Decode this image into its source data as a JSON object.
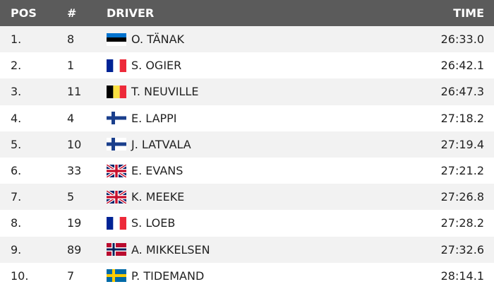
{
  "table": {
    "header": [
      "POS",
      "#",
      "DRIVER",
      "TIME"
    ],
    "rows": [
      [
        "1.",
        "8",
        "O. TÄNAK",
        "26:33.0"
      ],
      [
        "2.",
        "1",
        "S. OGIER",
        "26:42.1"
      ],
      [
        "3.",
        "11",
        "T. NEUVILLE",
        "26:47.3"
      ],
      [
        "4.",
        "4",
        "E. LAPPI",
        "27:18.2"
      ],
      [
        "5.",
        "10",
        "J. LATVALA",
        "27:19.4"
      ],
      [
        "6.",
        "33",
        "E. EVANS",
        "27:21.2"
      ],
      [
        "7.",
        "5",
        "K. MEEKE",
        "27:26.8"
      ],
      [
        "8.",
        "19",
        "S. LOEB",
        "27:28.2"
      ],
      [
        "9.",
        "89",
        "A. MIKKELSEN",
        "27:32.6"
      ],
      [
        "10.",
        "7",
        "P. TIDEMAND",
        "28:14.1"
      ]
    ]
  }
}
